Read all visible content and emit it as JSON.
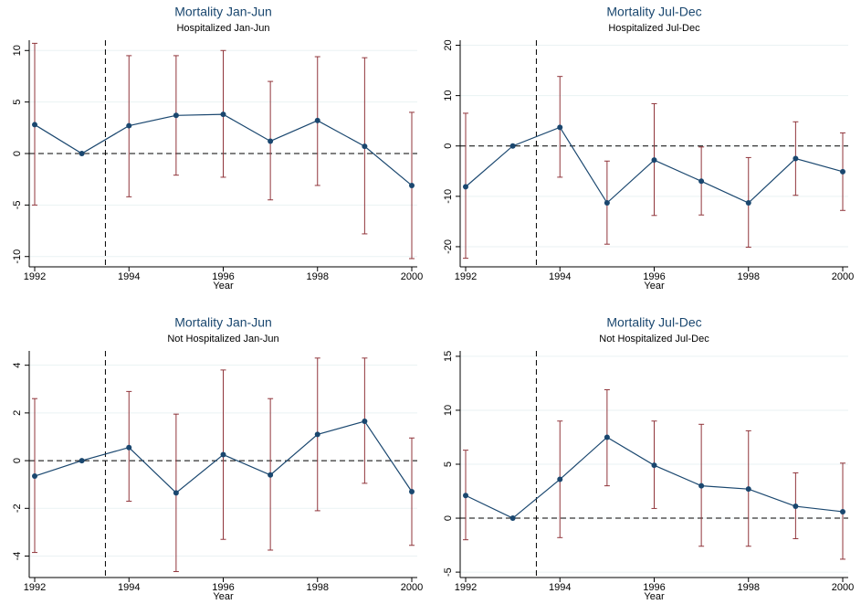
{
  "chart_data": [
    {
      "type": "line",
      "title": "Mortality Jan-Jun",
      "subtitle": "Hospitalized Jan-Jun",
      "xlabel": "Year",
      "x": [
        1992,
        1993,
        1994,
        1995,
        1996,
        1997,
        1998,
        1999,
        2000
      ],
      "values": [
        2.8,
        0,
        2.7,
        3.7,
        3.8,
        1.2,
        3.2,
        0.7,
        -3.1
      ],
      "ci_lower": [
        -5,
        null,
        -4.2,
        -2.1,
        -2.3,
        -4.5,
        -3.1,
        -7.8,
        -10.2
      ],
      "ci_upper": [
        10.7,
        null,
        9.5,
        9.5,
        10,
        7,
        9.4,
        9.3,
        4
      ],
      "xlim": [
        1992,
        2000
      ],
      "xticks": [
        1992,
        1994,
        1996,
        1998,
        2000
      ],
      "ylim": [
        -11,
        11
      ],
      "yticks": [
        -10,
        -5,
        0,
        5,
        10
      ],
      "reference_x": 1993.5,
      "reference_y": 0,
      "grid": true,
      "color": "#1a476f",
      "ci_color": "#90353b"
    },
    {
      "type": "line",
      "title": "Mortality Jul-Dec",
      "subtitle": "Hospitalized Jul-Dec",
      "xlabel": "Year",
      "x": [
        1992,
        1993,
        1994,
        1995,
        1996,
        1997,
        1998,
        1999,
        2000
      ],
      "values": [
        -8.1,
        0,
        3.7,
        -11.3,
        -2.8,
        -7,
        -11.3,
        -2.5,
        -5.1
      ],
      "ci_lower": [
        -22.3,
        null,
        -6.2,
        -19.5,
        -13.8,
        -13.7,
        -20.1,
        -9.8,
        -12.8
      ],
      "ci_upper": [
        6.5,
        null,
        13.8,
        -3,
        8.4,
        -0.2,
        -2.3,
        4.8,
        2.6
      ],
      "xlim": [
        1992,
        2000
      ],
      "xticks": [
        1992,
        1994,
        1996,
        1998,
        2000
      ],
      "ylim": [
        -24,
        21
      ],
      "yticks": [
        -20,
        -10,
        0,
        10,
        20
      ],
      "reference_x": 1993.5,
      "reference_y": 0,
      "grid": true,
      "color": "#1a476f",
      "ci_color": "#90353b"
    },
    {
      "type": "line",
      "title": "Mortality Jan-Jun",
      "subtitle": "Not Hospitalized Jan-Jun",
      "xlabel": "Year",
      "x": [
        1992,
        1993,
        1994,
        1995,
        1996,
        1997,
        1998,
        1999,
        2000
      ],
      "values": [
        -0.65,
        0,
        0.55,
        -1.35,
        0.25,
        -0.6,
        1.1,
        1.65,
        -1.3
      ],
      "ci_lower": [
        -3.85,
        null,
        -1.7,
        -4.65,
        -3.3,
        -3.75,
        -2.1,
        -0.95,
        -3.55
      ],
      "ci_upper": [
        2.6,
        null,
        2.9,
        1.95,
        3.8,
        2.6,
        4.3,
        4.3,
        0.95
      ],
      "xlim": [
        1992,
        2000
      ],
      "xticks": [
        1992,
        1994,
        1996,
        1998,
        2000
      ],
      "ylim": [
        -4.9,
        4.6
      ],
      "yticks": [
        -4,
        -2,
        0,
        2,
        4
      ],
      "reference_x": 1993.5,
      "reference_y": 0,
      "grid": true,
      "color": "#1a476f",
      "ci_color": "#90353b"
    },
    {
      "type": "line",
      "title": "Mortality Jul-Dec",
      "subtitle": "Not Hospitalized Jul-Dec",
      "xlabel": "Year",
      "x": [
        1992,
        1993,
        1994,
        1995,
        1996,
        1997,
        1998,
        1999,
        2000
      ],
      "values": [
        2.1,
        0,
        3.6,
        7.5,
        4.9,
        3,
        2.7,
        1.1,
        0.6
      ],
      "ci_lower": [
        -2,
        null,
        -1.8,
        3,
        0.9,
        -2.6,
        -2.6,
        -1.9,
        -3.8
      ],
      "ci_upper": [
        6.3,
        null,
        9,
        11.9,
        9,
        8.7,
        8.1,
        4.2,
        5.1
      ],
      "xlim": [
        1992,
        2000
      ],
      "xticks": [
        1992,
        1994,
        1996,
        1998,
        2000
      ],
      "ylim": [
        -5.5,
        15.5
      ],
      "yticks": [
        -5,
        0,
        5,
        10,
        15
      ],
      "reference_x": 1993.5,
      "reference_y": 0,
      "grid": true,
      "color": "#1a476f",
      "ci_color": "#90353b"
    }
  ]
}
